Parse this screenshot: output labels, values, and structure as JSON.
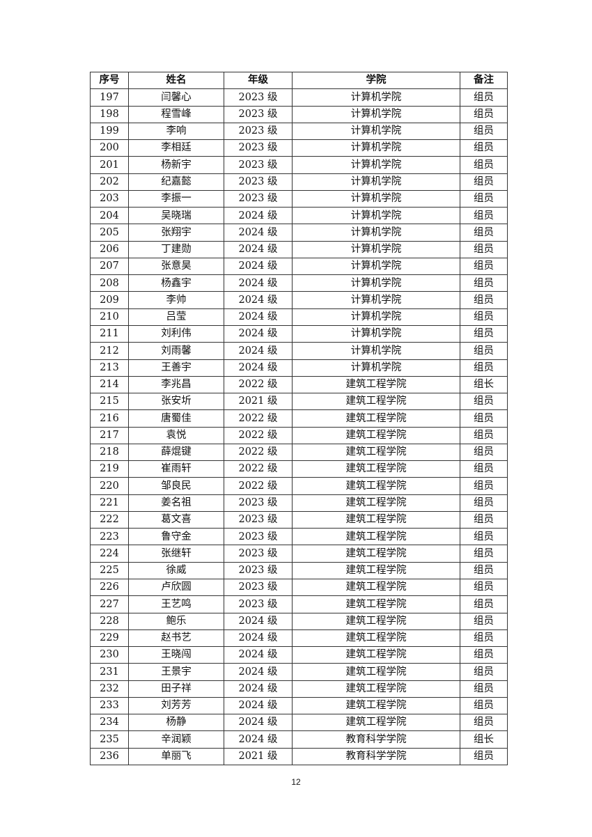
{
  "table": {
    "headers": [
      "序号",
      "姓名",
      "年级",
      "学院",
      "备注"
    ],
    "rows": [
      [
        "197",
        "闫馨心",
        "2023 级",
        "计算机学院",
        "组员"
      ],
      [
        "198",
        "程雪峰",
        "2023 级",
        "计算机学院",
        "组员"
      ],
      [
        "199",
        "李响",
        "2023 级",
        "计算机学院",
        "组员"
      ],
      [
        "200",
        "李相廷",
        "2023 级",
        "计算机学院",
        "组员"
      ],
      [
        "201",
        "杨新宇",
        "2023 级",
        "计算机学院",
        "组员"
      ],
      [
        "202",
        "纪嘉懿",
        "2023 级",
        "计算机学院",
        "组员"
      ],
      [
        "203",
        "李振一",
        "2023 级",
        "计算机学院",
        "组员"
      ],
      [
        "204",
        "吴晓瑞",
        "2024 级",
        "计算机学院",
        "组员"
      ],
      [
        "205",
        "张翔宇",
        "2024 级",
        "计算机学院",
        "组员"
      ],
      [
        "206",
        "丁建勋",
        "2024 级",
        "计算机学院",
        "组员"
      ],
      [
        "207",
        "张意昊",
        "2024 级",
        "计算机学院",
        "组员"
      ],
      [
        "208",
        "杨鑫宇",
        "2024 级",
        "计算机学院",
        "组员"
      ],
      [
        "209",
        "李帅",
        "2024 级",
        "计算机学院",
        "组员"
      ],
      [
        "210",
        "吕莹",
        "2024 级",
        "计算机学院",
        "组员"
      ],
      [
        "211",
        "刘利伟",
        "2024 级",
        "计算机学院",
        "组员"
      ],
      [
        "212",
        "刘雨馨",
        "2024 级",
        "计算机学院",
        "组员"
      ],
      [
        "213",
        "王善宇",
        "2024 级",
        "计算机学院",
        "组员"
      ],
      [
        "214",
        "李兆昌",
        "2022 级",
        "建筑工程学院",
        "组长"
      ],
      [
        "215",
        "张安圻",
        "2021 级",
        "建筑工程学院",
        "组员"
      ],
      [
        "216",
        "唐蜀佳",
        "2022 级",
        "建筑工程学院",
        "组员"
      ],
      [
        "217",
        "袁悦",
        "2022 级",
        "建筑工程学院",
        "组员"
      ],
      [
        "218",
        "薛焜键",
        "2022 级",
        "建筑工程学院",
        "组员"
      ],
      [
        "219",
        "崔雨轩",
        "2022 级",
        "建筑工程学院",
        "组员"
      ],
      [
        "220",
        "邹良民",
        "2022 级",
        "建筑工程学院",
        "组员"
      ],
      [
        "221",
        "姜名祖",
        "2023 级",
        "建筑工程学院",
        "组员"
      ],
      [
        "222",
        "葛文喜",
        "2023 级",
        "建筑工程学院",
        "组员"
      ],
      [
        "223",
        "鲁守金",
        "2023 级",
        "建筑工程学院",
        "组员"
      ],
      [
        "224",
        "张继轩",
        "2023 级",
        "建筑工程学院",
        "组员"
      ],
      [
        "225",
        "徐威",
        "2023 级",
        "建筑工程学院",
        "组员"
      ],
      [
        "226",
        "卢欣圆",
        "2023 级",
        "建筑工程学院",
        "组员"
      ],
      [
        "227",
        "王艺鸣",
        "2023 级",
        "建筑工程学院",
        "组员"
      ],
      [
        "228",
        "鲍乐",
        "2024 级",
        "建筑工程学院",
        "组员"
      ],
      [
        "229",
        "赵书艺",
        "2024 级",
        "建筑工程学院",
        "组员"
      ],
      [
        "230",
        "王晓闯",
        "2024 级",
        "建筑工程学院",
        "组员"
      ],
      [
        "231",
        "王景宇",
        "2024 级",
        "建筑工程学院",
        "组员"
      ],
      [
        "232",
        "田子祥",
        "2024 级",
        "建筑工程学院",
        "组员"
      ],
      [
        "233",
        "刘芳芳",
        "2024 级",
        "建筑工程学院",
        "组员"
      ],
      [
        "234",
        "杨静",
        "2024 级",
        "建筑工程学院",
        "组员"
      ],
      [
        "235",
        "辛润颖",
        "2024 级",
        "教育科学学院",
        "组长"
      ],
      [
        "236",
        "单丽飞",
        "2021 级",
        "教育科学学院",
        "组员"
      ]
    ]
  },
  "page_number": "12"
}
